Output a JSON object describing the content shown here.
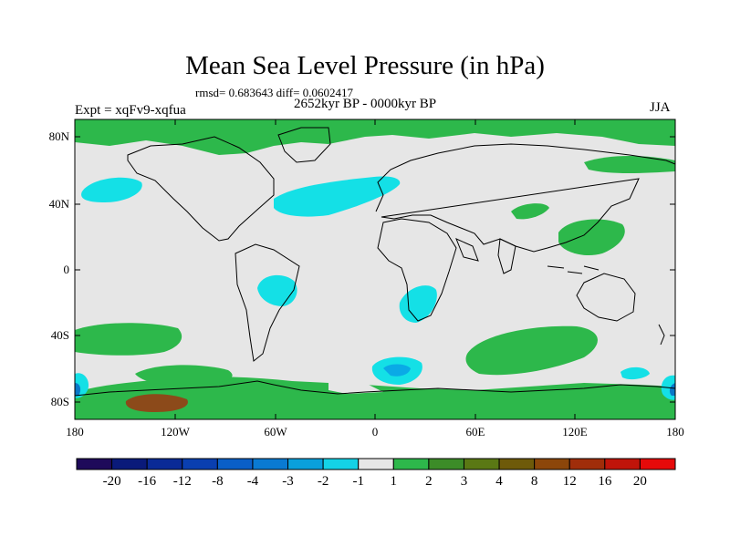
{
  "header": {
    "title": "Mean Sea Level Pressure (in hPa)",
    "stats": "rmsd= 0.683643 diff= 0.0602417",
    "period": "2652kyr BP - 0000kyr BP",
    "experiment": "Expt = xqFv9-xqfua",
    "season": "JJA"
  },
  "map": {
    "lat_ticks": [
      "80N",
      "40N",
      "0",
      "40S",
      "80S"
    ],
    "lon_ticks": [
      "180",
      "120W",
      "60W",
      "0",
      "60E",
      "120E",
      "180"
    ],
    "colors": {
      "background": "#e6e6e6",
      "coastline": "#000000",
      "positive_1_2": "#2db84b",
      "negative_1_2": "#14e0e6",
      "negative_2_3": "#0aaae6",
      "negative_3_4": "#0a78c8",
      "positive_4_8": "#8c4a1a"
    }
  },
  "colorbar": {
    "labels": [
      "-20",
      "-16",
      "-12",
      "-8",
      "-4",
      "-3",
      "-2",
      "-1",
      "1",
      "2",
      "3",
      "4",
      "8",
      "12",
      "16",
      "20"
    ],
    "colors": [
      "#1e0a5a",
      "#0a1a7a",
      "#0a2a96",
      "#0a3fb0",
      "#0a5fc8",
      "#0a7ad2",
      "#0aa0dc",
      "#14d2e6",
      "#e6e6e6",
      "#2db84b",
      "#3c8c28",
      "#5a7814",
      "#6e5a0a",
      "#8c460a",
      "#a02d0a",
      "#c0140a",
      "#e60a0a"
    ]
  }
}
